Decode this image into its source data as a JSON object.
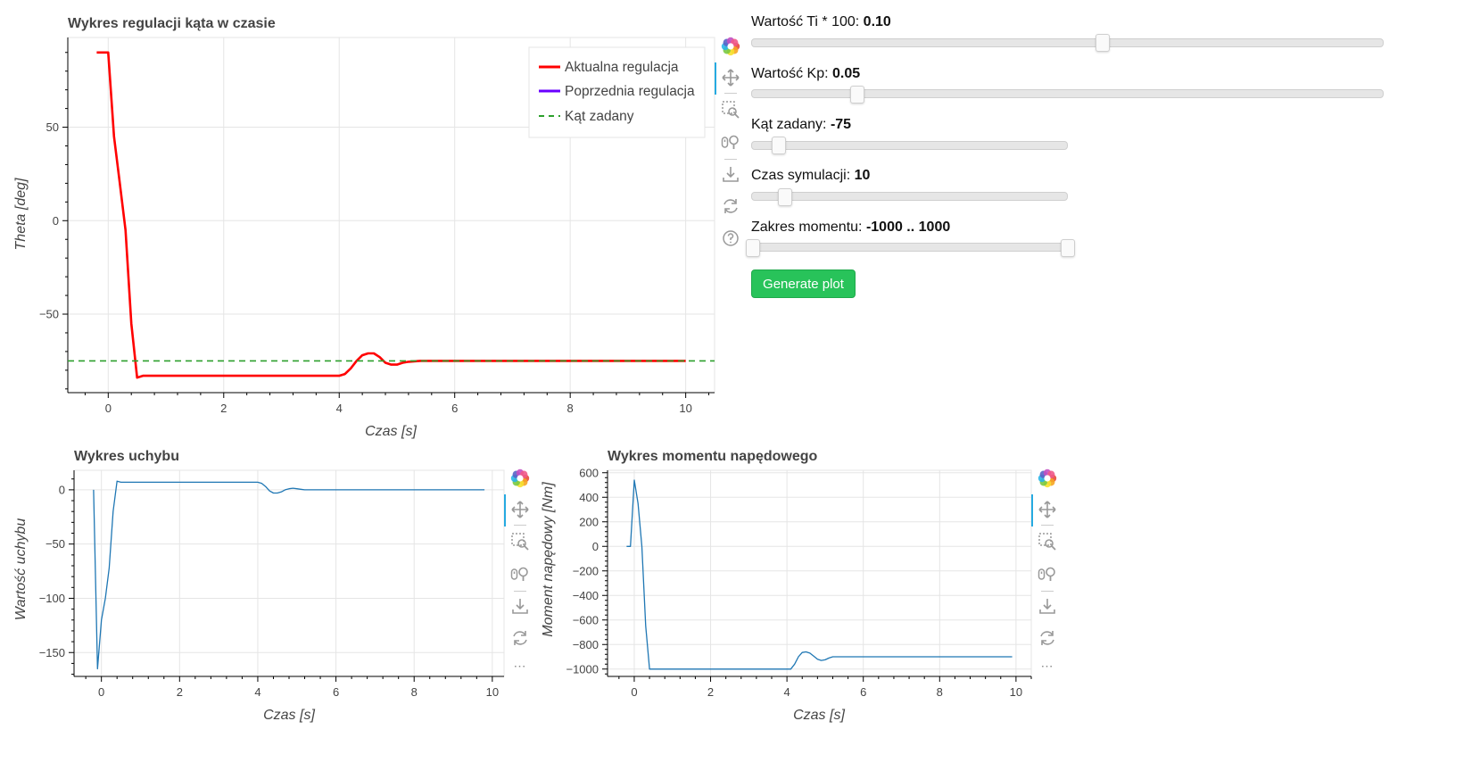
{
  "charts": {
    "theta": {
      "title": "Wykres regulacji kąta w czasie",
      "xlabel": "Czas [s]",
      "ylabel": "Theta [deg]"
    },
    "error": {
      "title": "Wykres uchybu",
      "xlabel": "Czas [s]",
      "ylabel": "Wartość uchybu"
    },
    "torque": {
      "title": "Wykres momentu napędowego",
      "xlabel": "Czas [s]",
      "ylabel": "Moment napędowy [Nm]"
    }
  },
  "chart_data": [
    {
      "type": "line",
      "title": "Wykres regulacji kąta w czasie",
      "xlabel": "Czas [s]",
      "ylabel": "Theta [deg]",
      "xlim": [
        -0.7,
        10.5
      ],
      "ylim": [
        -92,
        98
      ],
      "xticks": [
        0,
        2,
        4,
        6,
        8,
        10
      ],
      "yticks": [
        -50,
        0,
        50
      ],
      "grid": true,
      "legend_position": "top-right",
      "series": [
        {
          "name": "Aktualna regulacja",
          "color": "#ff0000",
          "style": "solid",
          "x": [
            -0.2,
            0.0,
            0.1,
            0.2,
            0.3,
            0.4,
            0.5,
            0.6,
            0.8,
            1.0,
            1.5,
            2.0,
            3.0,
            4.0,
            4.1,
            4.2,
            4.3,
            4.4,
            4.5,
            4.6,
            4.7,
            4.8,
            4.9,
            5.0,
            5.1,
            5.2,
            5.4,
            5.6,
            6.0,
            7.0,
            8.0,
            9.0,
            10.0
          ],
          "y": [
            90,
            90,
            45,
            20,
            -5,
            -55,
            -84,
            -83,
            -83,
            -83,
            -83,
            -83,
            -83,
            -83,
            -82,
            -79,
            -75,
            -72,
            -71,
            -71,
            -73,
            -76,
            -77,
            -77,
            -76,
            -75.5,
            -75,
            -75,
            -75,
            -75,
            -75,
            -75,
            -75
          ]
        },
        {
          "name": "Poprzednia regulacja",
          "color": "#6a00ff",
          "style": "solid",
          "x": [],
          "y": []
        },
        {
          "name": "Kąt zadany",
          "color": "#2ca02c",
          "style": "dashed",
          "x": [
            -0.7,
            10.5
          ],
          "y": [
            -75,
            -75
          ]
        }
      ]
    },
    {
      "type": "line",
      "title": "Wykres uchybu",
      "xlabel": "Czas [s]",
      "ylabel": "Wartość uchybu",
      "xlim": [
        -0.7,
        10.3
      ],
      "ylim": [
        -172,
        18
      ],
      "xticks": [
        0,
        2,
        4,
        6,
        8,
        10
      ],
      "yticks": [
        -150,
        -100,
        -50,
        0
      ],
      "grid": true,
      "series": [
        {
          "color": "#1f77b4",
          "x": [
            -0.2,
            -0.1,
            0.0,
            0.1,
            0.2,
            0.3,
            0.4,
            0.5,
            1.0,
            2.0,
            3.0,
            4.0,
            4.1,
            4.2,
            4.3,
            4.4,
            4.5,
            4.6,
            4.7,
            4.8,
            4.9,
            5.0,
            5.1,
            5.2,
            5.4,
            5.6,
            6.0,
            7.0,
            8.0,
            9.0,
            9.8
          ],
          "y": [
            0,
            -165,
            -120,
            -100,
            -72,
            -20,
            8,
            7,
            7,
            7,
            7,
            7,
            6,
            3,
            -1,
            -3,
            -3,
            -2,
            0,
            1,
            1.5,
            1,
            0.5,
            0,
            0,
            0,
            0,
            0,
            0,
            0,
            0
          ]
        }
      ]
    },
    {
      "type": "line",
      "title": "Wykres momentu napędowego",
      "xlabel": "Czas [s]",
      "ylabel": "Moment napędowy [Nm]",
      "xlim": [
        -0.7,
        10.4
      ],
      "ylim": [
        -1060,
        620
      ],
      "xticks": [
        0,
        2,
        4,
        6,
        8,
        10
      ],
      "yticks": [
        -1000,
        -800,
        -600,
        -400,
        -200,
        0,
        200,
        400,
        600
      ],
      "grid": true,
      "series": [
        {
          "color": "#1f77b4",
          "x": [
            -0.2,
            -0.1,
            0.0,
            0.1,
            0.2,
            0.3,
            0.4,
            0.5,
            1.0,
            2.0,
            3.0,
            4.0,
            4.1,
            4.2,
            4.3,
            4.4,
            4.5,
            4.6,
            4.7,
            4.8,
            4.9,
            5.0,
            5.1,
            5.2,
            5.4,
            5.6,
            6.0,
            7.0,
            8.0,
            9.0,
            9.9
          ],
          "y": [
            0,
            0,
            540,
            350,
            0,
            -650,
            -1000,
            -1000,
            -1000,
            -1000,
            -1000,
            -1000,
            -1000,
            -960,
            -900,
            -865,
            -860,
            -870,
            -895,
            -920,
            -930,
            -925,
            -910,
            -900,
            -900,
            -900,
            -900,
            -900,
            -900,
            -900,
            -900
          ]
        }
      ]
    }
  ],
  "controls": {
    "sliders": [
      {
        "label": "Wartość Ti * 100: ",
        "value": "0.10",
        "fraction": 0.557
      },
      {
        "label": "Wartość Kp: ",
        "value": "0.05",
        "fraction": 0.168
      },
      {
        "label": "Kąt zadany: ",
        "value": "-75",
        "fraction": 0.087
      },
      {
        "label": "Czas symulacji: ",
        "value": "10",
        "fraction": 0.107
      },
      {
        "label": "Zakres momentu: ",
        "value": "-1000 .. 1000",
        "range_fraction": [
          0.0,
          1.0
        ]
      }
    ],
    "generate_label": "Generate plot"
  },
  "toolbar": {
    "tools": [
      "bokeh-logo",
      "pan-icon",
      "box-zoom-icon",
      "wheel-zoom-icon",
      "save-icon",
      "reset-icon",
      "help-icon"
    ],
    "more_label": "⋯"
  }
}
